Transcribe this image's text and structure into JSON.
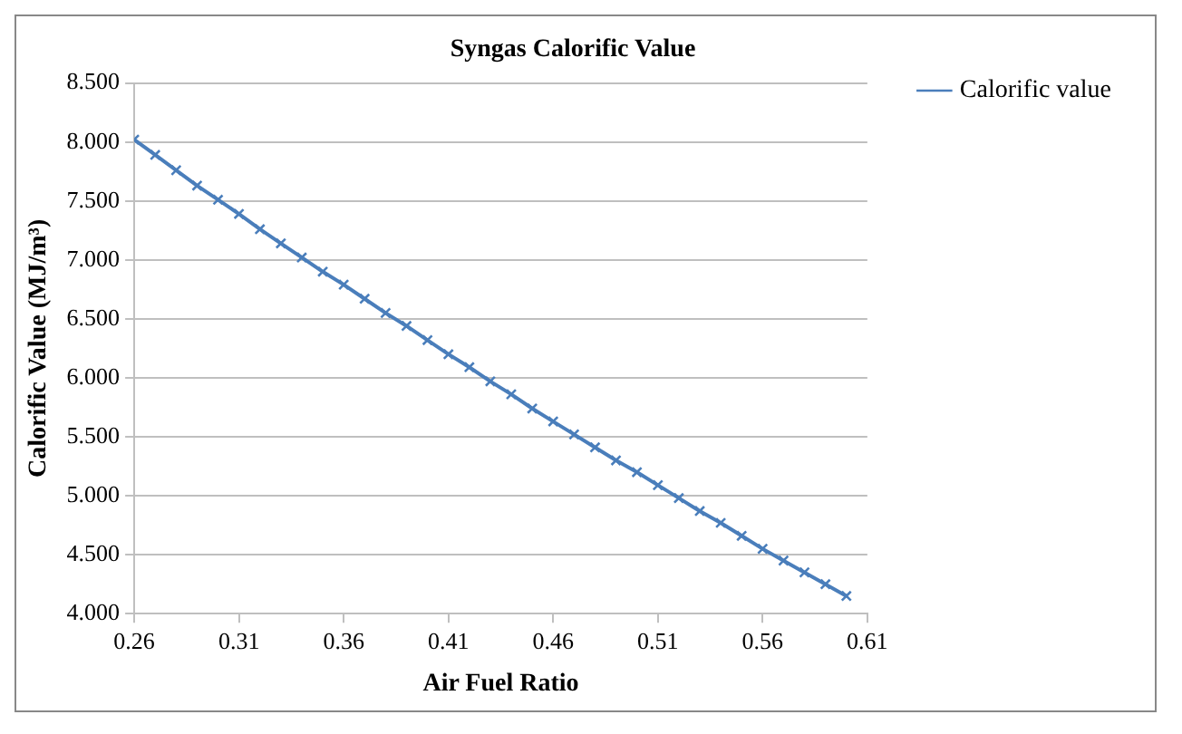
{
  "chart_data": {
    "type": "line",
    "title": "Syngas Calorific Value",
    "xlabel": "Air Fuel Ratio",
    "ylabel": "Calorific Value (MJ/m³)",
    "x": [
      0.26,
      0.27,
      0.28,
      0.29,
      0.3,
      0.31,
      0.32,
      0.33,
      0.34,
      0.35,
      0.36,
      0.37,
      0.38,
      0.39,
      0.4,
      0.41,
      0.42,
      0.43,
      0.44,
      0.45,
      0.46,
      0.47,
      0.48,
      0.49,
      0.5,
      0.51,
      0.52,
      0.53,
      0.54,
      0.55,
      0.56,
      0.57,
      0.58,
      0.59,
      0.6
    ],
    "series": [
      {
        "name": "Calorific value",
        "color": "#4a7ebb",
        "values": [
          8.02,
          7.89,
          7.76,
          7.63,
          7.51,
          7.39,
          7.26,
          7.14,
          7.02,
          6.9,
          6.79,
          6.67,
          6.55,
          6.44,
          6.32,
          6.2,
          6.09,
          5.97,
          5.86,
          5.74,
          5.63,
          5.52,
          5.41,
          5.3,
          5.2,
          5.09,
          4.98,
          4.87,
          4.77,
          4.66,
          4.55,
          4.45,
          4.35,
          4.25,
          4.15
        ]
      }
    ],
    "xlim": [
      0.26,
      0.61
    ],
    "xticks": [
      0.26,
      0.31,
      0.36,
      0.41,
      0.46,
      0.51,
      0.56,
      0.61
    ],
    "ylim": [
      4,
      8.5
    ],
    "yticks": [
      {
        "value": 4,
        "label": "4.000"
      },
      {
        "value": 4.5,
        "label": "4.500"
      },
      {
        "value": 5,
        "label": "5.000"
      },
      {
        "value": 5.5,
        "label": "5.500"
      },
      {
        "value": 6,
        "label": "6.000"
      },
      {
        "value": 6.5,
        "label": "6.500"
      },
      {
        "value": 7,
        "label": "7.000"
      },
      {
        "value": 7.5,
        "label": "7.500"
      },
      {
        "value": 8,
        "label": "8.000"
      },
      {
        "value": 8.5,
        "label": "8.500"
      }
    ],
    "grid": "y",
    "legend": "right",
    "marker": "cross",
    "line_style": "solid"
  }
}
